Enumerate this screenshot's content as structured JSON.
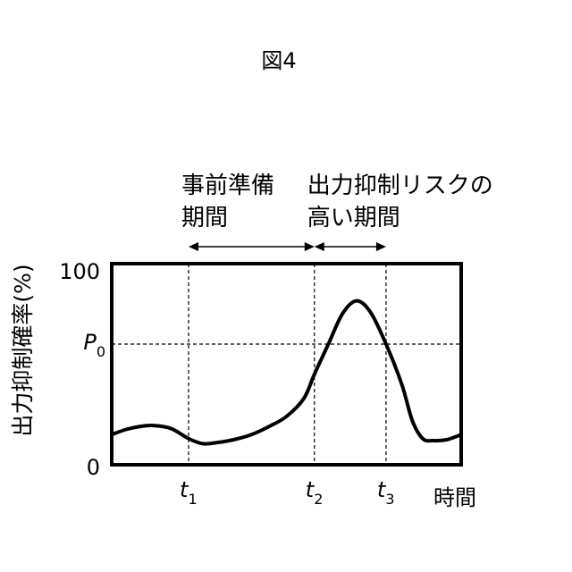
{
  "chart_data": {
    "type": "line",
    "title": "図4",
    "xlabel": "時間",
    "ylabel": "出力抑制確率(%)",
    "ylim": [
      0,
      100
    ],
    "y_ticks": [
      "100",
      "0"
    ],
    "threshold": {
      "label": "P",
      "subscript": "0",
      "value": 60
    },
    "time_markers": [
      {
        "label": "t",
        "subscript": "1",
        "x": 0.22
      },
      {
        "label": "t",
        "subscript": "2",
        "x": 0.58
      },
      {
        "label": "t",
        "subscript": "3",
        "x": 0.785
      }
    ],
    "periods": [
      {
        "line1": "事前準備",
        "line2": "期間",
        "from": 0.22,
        "to": 0.58
      },
      {
        "line1": "出力抑制リスクの",
        "line2": "高い期間",
        "from": 0.58,
        "to": 0.785
      }
    ],
    "grid": false,
    "series": [
      {
        "x": [
          0,
          0.04,
          0.08,
          0.12,
          0.17,
          0.22,
          0.26,
          0.3,
          0.35,
          0.4,
          0.45,
          0.5,
          0.55,
          0.58,
          0.62,
          0.66,
          0.7,
          0.74,
          0.785,
          0.83,
          0.86,
          0.89,
          0.92,
          0.96,
          1.0
        ],
        "y": [
          15,
          17.5,
          19,
          19.5,
          18,
          13,
          10.5,
          11,
          12.5,
          15,
          19,
          24,
          33,
          45,
          60,
          75,
          81.5,
          76,
          60,
          40,
          22,
          13,
          12,
          12.5,
          15
        ]
      }
    ]
  }
}
